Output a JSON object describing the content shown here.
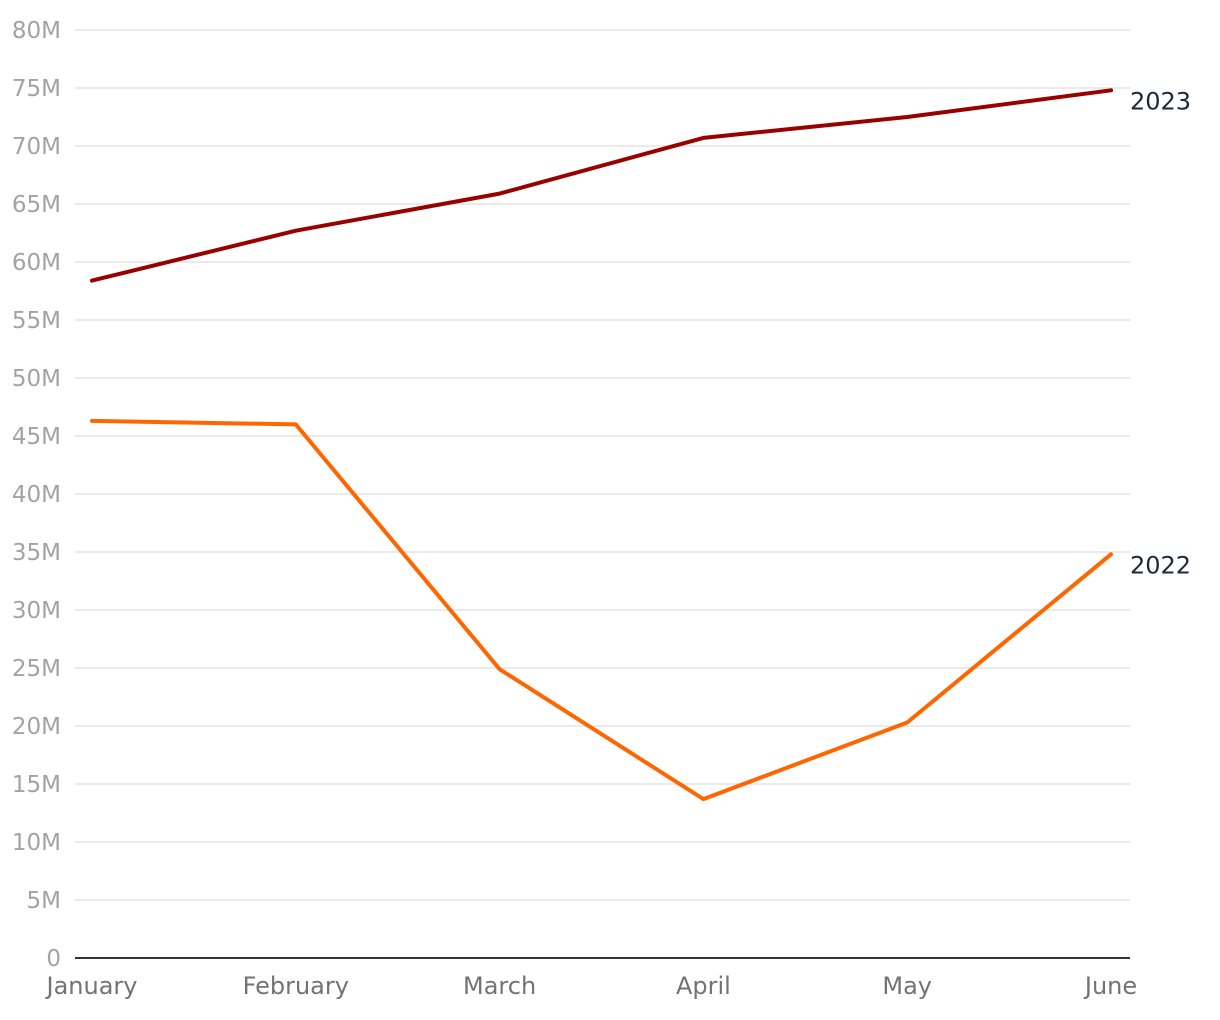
{
  "chart_data": {
    "type": "line",
    "categories": [
      "January",
      "February",
      "March",
      "April",
      "May",
      "June"
    ],
    "ylim": [
      0,
      80000000
    ],
    "y_tick_labels": [
      "0",
      "5M",
      "10M",
      "15M",
      "20M",
      "25M",
      "30M",
      "35M",
      "40M",
      "45M",
      "50M",
      "55M",
      "60M",
      "65M",
      "70M",
      "75M",
      "80M"
    ],
    "grid": true,
    "legend": "direct labels at right end of each line",
    "series": [
      {
        "name": "2023",
        "color": "#990000",
        "values": [
          58400000,
          62700000,
          65900000,
          70700000,
          72500000,
          74800000
        ]
      },
      {
        "name": "2022",
        "color": "#ff6600",
        "values": [
          46300000,
          46000000,
          24900000,
          13700000,
          20300000,
          34800000
        ]
      }
    ]
  }
}
